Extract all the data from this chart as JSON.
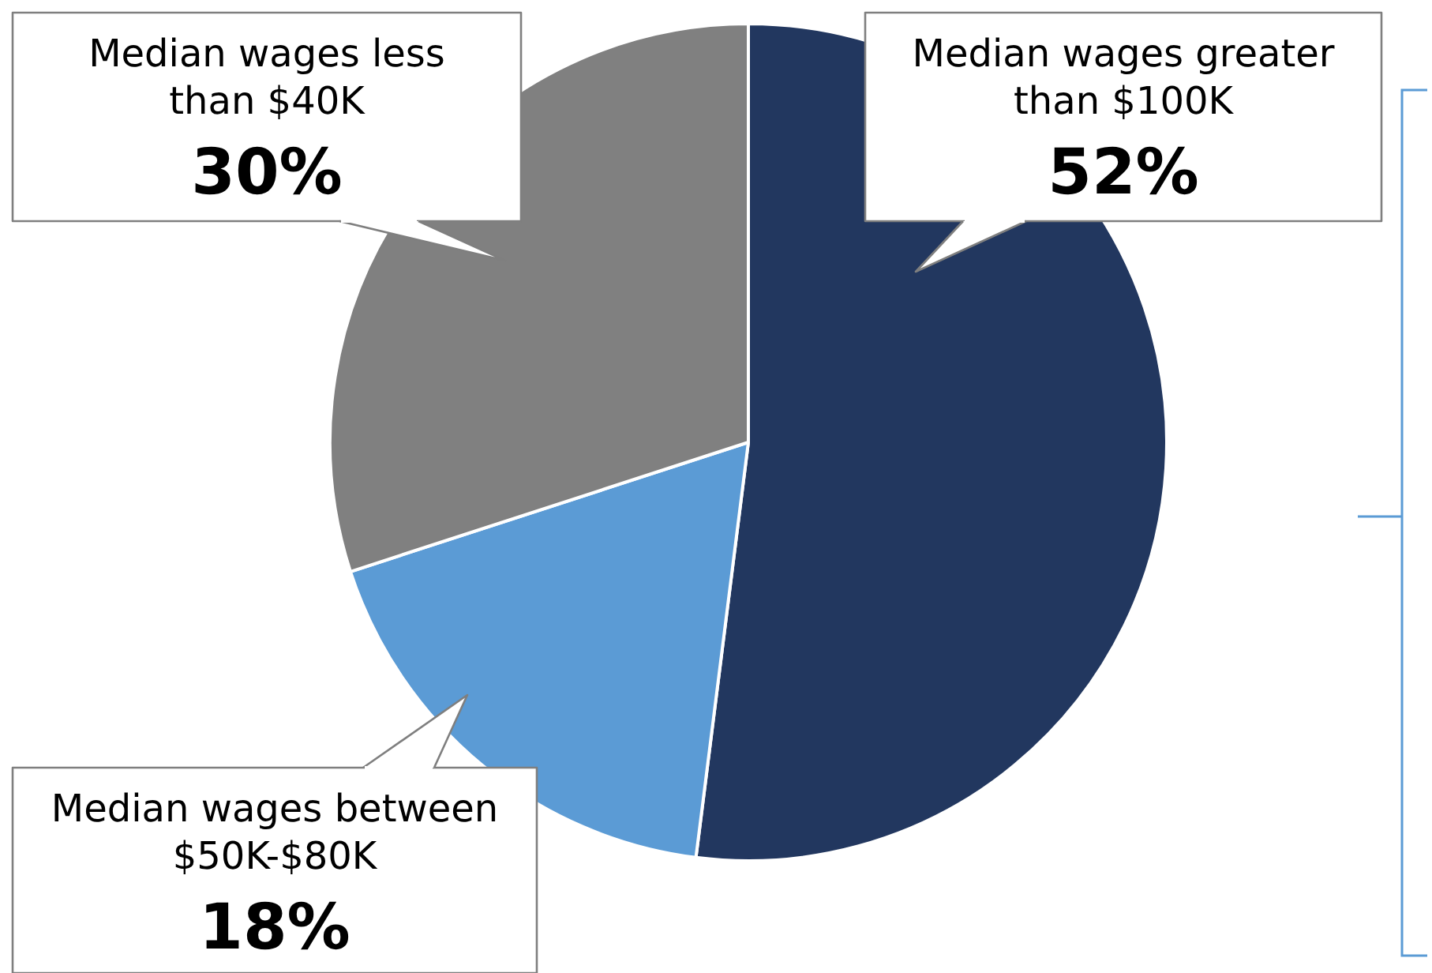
{
  "chart_data": {
    "type": "pie",
    "categories": [
      "Median wages greater than $100K",
      "Median wages between $50K-$80K",
      "Median wages less than $40K"
    ],
    "values": [
      52,
      18,
      30
    ],
    "colors": [
      "#22375f",
      "#5b9bd5",
      "#808080"
    ],
    "value_labels": [
      "52%",
      "18%",
      "30%"
    ],
    "legend": false
  }
}
